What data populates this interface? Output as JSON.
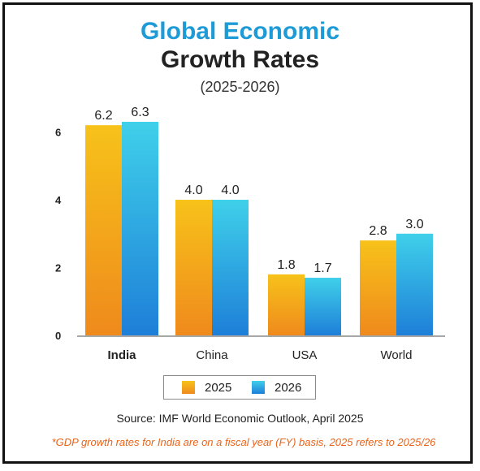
{
  "chart_data": {
    "type": "bar",
    "title": "Global Economic",
    "title_line2": "Growth Rates",
    "subtitle": "(2025-2026)",
    "categories": [
      "India",
      "China",
      "USA",
      "World"
    ],
    "series": [
      {
        "name": "2025",
        "values": [
          6.2,
          4.0,
          1.8,
          2.8
        ],
        "value_labels": [
          "6.2",
          "4.0",
          "1.8",
          "2.8"
        ],
        "color_top": "#f7c21a",
        "color_bottom": "#ef8a1c"
      },
      {
        "name": "2026",
        "values": [
          6.3,
          4.0,
          1.7,
          3.0
        ],
        "value_labels": [
          "6.3",
          "4.0",
          "1.7",
          "3.0"
        ],
        "color_top": "#3fd0ea",
        "color_bottom": "#1e7fd8"
      }
    ],
    "yticks": [
      0,
      2,
      4,
      6
    ],
    "ylim": [
      0,
      6.3
    ],
    "xlabel": "",
    "ylabel": "",
    "grid": false,
    "legend_position": "bottom",
    "bold_category": "India"
  },
  "source": "Source: IMF World Economic Outlook, April 2025",
  "footnote": "*GDP growth rates for India are on a fiscal year (FY) basis, 2025 refers to 2025/26",
  "colors": {
    "title_accent": "#1e9bd7",
    "footnote": "#e8641b",
    "axis": "#8a8a8a"
  }
}
